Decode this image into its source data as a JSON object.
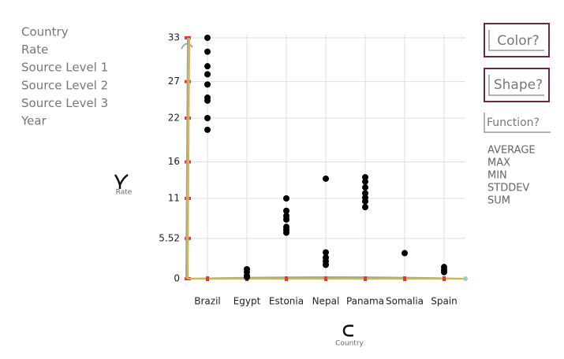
{
  "fields": [
    "Country",
    "Rate",
    "Source Level 1",
    "Source Level 2",
    "Source Level 3",
    "Year"
  ],
  "buttons": {
    "color": "Color?",
    "shape": "Shape?",
    "function": "Function?"
  },
  "functions": [
    "AVERAGE",
    "MAX",
    "MIN",
    "STDDEV",
    "SUM"
  ],
  "chart_data": {
    "type": "scatter",
    "x_label": "Country",
    "y_label": "Rate",
    "categories": [
      "Brazil",
      "Egypt",
      "Estonia",
      "Nepal",
      "Panama",
      "Somalia",
      "Spain"
    ],
    "x": [
      "Brazil",
      "Brazil",
      "Brazil",
      "Brazil",
      "Brazil",
      "Brazil",
      "Brazil",
      "Brazil",
      "Brazil",
      "Egypt",
      "Egypt",
      "Egypt",
      "Egypt",
      "Estonia",
      "Estonia",
      "Estonia",
      "Estonia",
      "Estonia",
      "Estonia",
      "Estonia",
      "Nepal",
      "Nepal",
      "Nepal",
      "Nepal",
      "Nepal",
      "Panama",
      "Panama",
      "Panama",
      "Panama",
      "Panama",
      "Panama",
      "Panama",
      "Somalia",
      "Spain",
      "Spain",
      "Spain"
    ],
    "values": [
      33,
      31.1,
      29.1,
      28.0,
      26.6,
      24.8,
      24.4,
      22.0,
      20.4,
      1.3,
      0.9,
      0.4,
      0.2,
      11.0,
      9.3,
      8.6,
      8.1,
      7.1,
      6.7,
      6.3,
      13.7,
      3.6,
      2.9,
      2.4,
      1.9,
      13.9,
      13.3,
      12.5,
      11.7,
      11.1,
      10.6,
      9.8,
      3.5,
      1.6,
      1.2,
      0.9
    ],
    "color": "#000000",
    "ylim": [
      0,
      33
    ],
    "yticks": [
      0,
      5.52,
      11,
      16,
      22,
      27,
      33
    ],
    "grid": true
  }
}
